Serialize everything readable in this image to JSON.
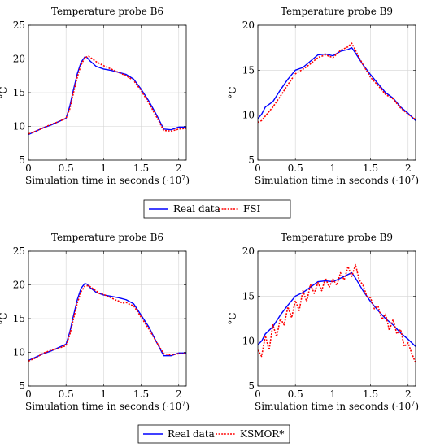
{
  "colors": {
    "real": "#0000ff",
    "model": "#ff0000",
    "grid": "#d4d4d4",
    "axis": "#000000"
  },
  "legends": [
    {
      "items": [
        "Real data",
        "FSI"
      ]
    },
    {
      "items": [
        "Real data",
        "KSMOR*"
      ]
    }
  ],
  "chart_data": [
    {
      "type": "line",
      "title": "Temperature probe B6",
      "xlabel": "Simulation time in seconds (·10",
      "xlabel_exp": "7",
      "xlabel_tail": ")",
      "ylabel": "°C",
      "xlim": [
        0,
        2.1
      ],
      "ylim": [
        5,
        25
      ],
      "xticks": [
        0,
        0.5,
        1,
        1.5,
        2
      ],
      "xtick_labels": [
        "0",
        "0.5",
        "1",
        "1.5",
        "2"
      ],
      "yticks": [
        5,
        10,
        15,
        20,
        25
      ],
      "ytick_labels": [
        "5",
        "10",
        "15",
        "20",
        "25"
      ],
      "grid": true,
      "series": [
        {
          "name": "Real data",
          "style": "solid",
          "x": [
            0,
            0.1,
            0.2,
            0.3,
            0.4,
            0.5,
            0.55,
            0.6,
            0.65,
            0.7,
            0.75,
            0.78,
            0.82,
            0.9,
            1.0,
            1.1,
            1.2,
            1.3,
            1.4,
            1.5,
            1.6,
            1.7,
            1.8,
            1.9,
            2.0,
            2.1
          ],
          "y": [
            8.8,
            9.3,
            9.8,
            10.2,
            10.7,
            11.2,
            13.0,
            15.5,
            17.8,
            19.5,
            20.3,
            20.2,
            19.7,
            18.9,
            18.5,
            18.3,
            18.0,
            17.7,
            17.0,
            15.5,
            13.8,
            11.8,
            9.6,
            9.5,
            9.9,
            9.9
          ]
        },
        {
          "name": "FSI",
          "style": "dotted",
          "x": [
            0,
            0.1,
            0.2,
            0.3,
            0.4,
            0.5,
            0.55,
            0.6,
            0.65,
            0.7,
            0.75,
            0.8,
            0.85,
            0.9,
            1.0,
            1.1,
            1.2,
            1.3,
            1.4,
            1.5,
            1.6,
            1.7,
            1.8,
            1.9,
            2.0,
            2.1
          ],
          "y": [
            8.9,
            9.3,
            9.8,
            10.3,
            10.7,
            11.2,
            12.6,
            15.0,
            17.3,
            19.1,
            20.2,
            20.4,
            20.0,
            19.6,
            19.0,
            18.5,
            18.0,
            17.5,
            16.8,
            15.3,
            13.5,
            11.5,
            9.4,
            9.3,
            9.6,
            9.7
          ]
        }
      ]
    },
    {
      "type": "line",
      "title": "Temperature probe B9",
      "xlabel": "Simulation time in seconds (·10",
      "xlabel_exp": "7",
      "xlabel_tail": ")",
      "ylabel": "°C",
      "xlim": [
        0,
        2.1
      ],
      "ylim": [
        5,
        20
      ],
      "xticks": [
        0,
        0.5,
        1,
        1.5,
        2
      ],
      "xtick_labels": [
        "0",
        "0.5",
        "1",
        "1.5",
        "2"
      ],
      "yticks": [
        5,
        10,
        15,
        20
      ],
      "ytick_labels": [
        "5",
        "10",
        "15",
        "20"
      ],
      "grid": true,
      "series": [
        {
          "name": "Real data",
          "style": "solid",
          "x": [
            0,
            0.05,
            0.1,
            0.2,
            0.3,
            0.4,
            0.5,
            0.6,
            0.7,
            0.8,
            0.9,
            1.0,
            1.1,
            1.2,
            1.25,
            1.3,
            1.4,
            1.5,
            1.6,
            1.7,
            1.8,
            1.9,
            2.0,
            2.1
          ],
          "y": [
            9.6,
            10.1,
            10.9,
            11.5,
            12.8,
            14.0,
            15.0,
            15.3,
            16.0,
            16.7,
            16.8,
            16.6,
            17.1,
            17.3,
            17.5,
            16.9,
            15.6,
            14.5,
            13.5,
            12.5,
            11.9,
            10.9,
            10.2,
            9.4
          ]
        },
        {
          "name": "FSI",
          "style": "dotted",
          "x": [
            0,
            0.05,
            0.1,
            0.2,
            0.3,
            0.4,
            0.5,
            0.6,
            0.7,
            0.8,
            0.9,
            1.0,
            1.1,
            1.2,
            1.25,
            1.3,
            1.4,
            1.5,
            1.6,
            1.7,
            1.8,
            1.9,
            2.0,
            2.1
          ],
          "y": [
            9.2,
            9.4,
            9.9,
            10.9,
            12.1,
            13.4,
            14.6,
            15.1,
            15.7,
            16.4,
            16.7,
            16.4,
            17.2,
            17.6,
            18.0,
            17.2,
            15.6,
            14.2,
            13.3,
            12.3,
            11.8,
            10.8,
            10.1,
            9.5
          ]
        }
      ]
    },
    {
      "type": "line",
      "title": "Temperature probe B6",
      "xlabel": "Simulation time in seconds (·10",
      "xlabel_exp": "7",
      "xlabel_tail": ")",
      "ylabel": "°C",
      "xlim": [
        0,
        2.1
      ],
      "ylim": [
        5,
        25
      ],
      "xticks": [
        0,
        0.5,
        1,
        1.5,
        2
      ],
      "xtick_labels": [
        "0",
        "0.5",
        "1",
        "1.5",
        "2"
      ],
      "yticks": [
        5,
        10,
        15,
        20,
        25
      ],
      "ytick_labels": [
        "5",
        "10",
        "15",
        "20",
        "25"
      ],
      "grid": true,
      "series": [
        {
          "name": "Real data",
          "style": "solid",
          "x": [
            0,
            0.1,
            0.2,
            0.3,
            0.4,
            0.5,
            0.55,
            0.6,
            0.65,
            0.7,
            0.75,
            0.78,
            0.82,
            0.9,
            1.0,
            1.1,
            1.2,
            1.3,
            1.4,
            1.5,
            1.6,
            1.7,
            1.8,
            1.9,
            2.0,
            2.1
          ],
          "y": [
            8.8,
            9.3,
            9.8,
            10.2,
            10.7,
            11.2,
            13.0,
            15.5,
            17.8,
            19.5,
            20.2,
            20.1,
            19.6,
            18.9,
            18.5,
            18.3,
            18.1,
            17.8,
            17.2,
            15.5,
            13.8,
            11.6,
            9.5,
            9.5,
            9.9,
            9.9
          ]
        },
        {
          "name": "KSMOR*",
          "style": "dotted",
          "x": [
            0,
            0.1,
            0.2,
            0.3,
            0.4,
            0.5,
            0.55,
            0.6,
            0.65,
            0.7,
            0.75,
            0.8,
            0.85,
            0.9,
            0.95,
            1.0,
            1.05,
            1.1,
            1.15,
            1.2,
            1.25,
            1.3,
            1.35,
            1.4,
            1.5,
            1.6,
            1.7,
            1.8,
            1.9,
            2.0,
            2.1
          ],
          "y": [
            8.7,
            9.2,
            9.9,
            10.3,
            10.6,
            11.0,
            12.6,
            15.0,
            17.3,
            19.0,
            19.8,
            19.9,
            19.5,
            19.1,
            18.7,
            18.6,
            18.3,
            18.1,
            17.8,
            17.6,
            17.3,
            17.4,
            17.1,
            16.9,
            15.2,
            13.5,
            11.6,
            9.8,
            9.6,
            9.8,
            9.8
          ]
        }
      ]
    },
    {
      "type": "line",
      "title": "Temperature probe B9",
      "xlabel": "Simulation time in seconds (·10",
      "xlabel_exp": "7",
      "xlabel_tail": ")",
      "ylabel": "°C",
      "xlim": [
        0,
        2.1
      ],
      "ylim": [
        5,
        20
      ],
      "xticks": [
        0,
        0.5,
        1,
        1.5,
        2
      ],
      "xtick_labels": [
        "0",
        "0.5",
        "1",
        "1.5",
        "2"
      ],
      "yticks": [
        5,
        10,
        15,
        20
      ],
      "ytick_labels": [
        "5",
        "10",
        "15",
        "20"
      ],
      "grid": true,
      "series": [
        {
          "name": "Real data",
          "style": "solid",
          "x": [
            0,
            0.05,
            0.1,
            0.2,
            0.3,
            0.4,
            0.5,
            0.6,
            0.7,
            0.8,
            0.9,
            1.0,
            1.1,
            1.2,
            1.25,
            1.3,
            1.4,
            1.5,
            1.6,
            1.7,
            1.8,
            1.9,
            2.0,
            2.1
          ],
          "y": [
            9.6,
            10.0,
            10.8,
            11.6,
            12.9,
            14.0,
            15.0,
            15.4,
            16.0,
            16.6,
            16.7,
            16.6,
            17.0,
            17.4,
            17.6,
            17.0,
            15.6,
            14.4,
            13.4,
            12.5,
            11.8,
            10.9,
            10.2,
            9.4
          ]
        },
        {
          "name": "KSMOR*",
          "style": "dotted",
          "x": [
            0,
            0.05,
            0.1,
            0.15,
            0.2,
            0.25,
            0.3,
            0.35,
            0.4,
            0.45,
            0.5,
            0.55,
            0.6,
            0.65,
            0.7,
            0.75,
            0.8,
            0.85,
            0.9,
            0.95,
            1.0,
            1.05,
            1.1,
            1.15,
            1.2,
            1.25,
            1.3,
            1.35,
            1.4,
            1.45,
            1.5,
            1.55,
            1.6,
            1.65,
            1.7,
            1.75,
            1.8,
            1.85,
            1.9,
            1.95,
            2.0,
            2.05,
            2.1
          ],
          "y": [
            9.0,
            8.3,
            10.6,
            9.0,
            11.8,
            10.5,
            12.5,
            11.8,
            13.8,
            12.6,
            14.5,
            13.4,
            15.6,
            14.4,
            16.3,
            15.3,
            16.5,
            15.6,
            17.0,
            16.0,
            16.9,
            16.2,
            17.6,
            16.8,
            18.3,
            17.2,
            18.5,
            16.8,
            16.2,
            15.0,
            14.8,
            13.6,
            13.9,
            12.4,
            13.0,
            11.2,
            12.4,
            10.8,
            11.3,
            9.4,
            9.8,
            8.6,
            7.6
          ]
        }
      ]
    }
  ]
}
